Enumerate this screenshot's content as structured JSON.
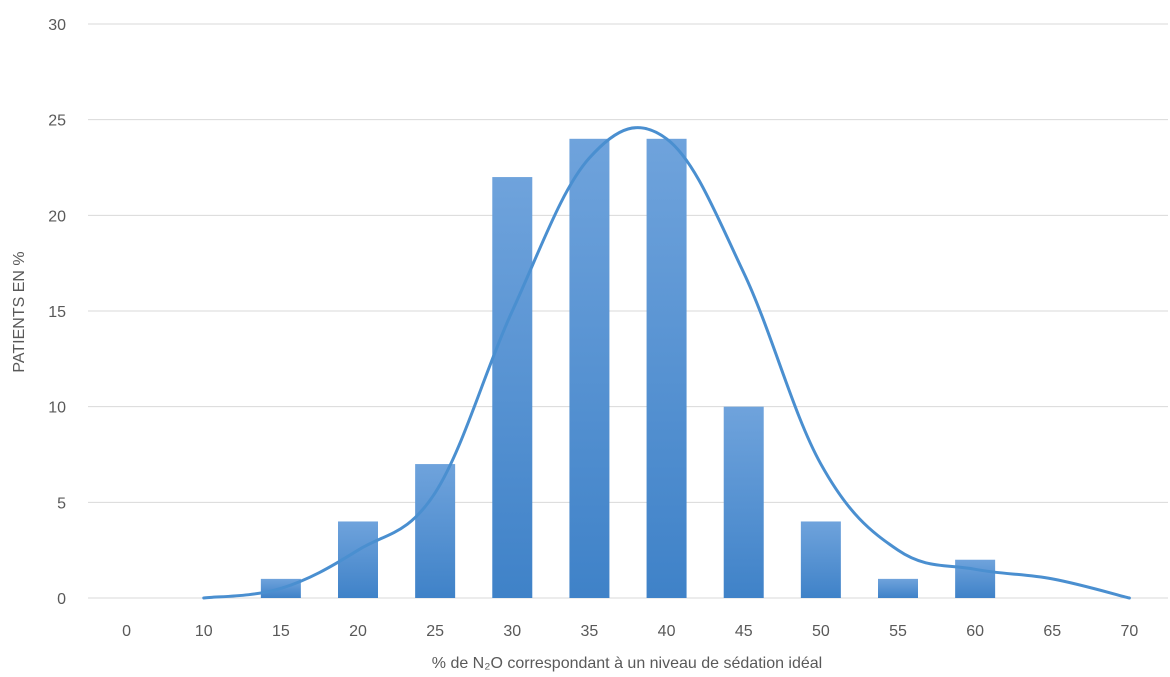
{
  "chart_data": {
    "type": "bar",
    "categories": [
      "0",
      "10",
      "15",
      "20",
      "25",
      "30",
      "35",
      "40",
      "45",
      "50",
      "55",
      "60",
      "65",
      "70"
    ],
    "series": [
      {
        "type": "bar",
        "values": [
          0,
          0,
          1,
          4,
          7,
          22,
          24,
          24,
          10,
          4,
          1,
          2,
          0,
          0
        ]
      },
      {
        "type": "line",
        "smooth": true,
        "values": [
          null,
          0,
          0.5,
          2.5,
          5.5,
          15,
          23,
          24,
          17,
          7,
          2.5,
          1.5,
          1,
          0
        ]
      }
    ],
    "ylim": [
      0,
      30
    ],
    "yticks": [
      "0",
      "5",
      "10",
      "15",
      "20",
      "25",
      "30"
    ],
    "xlabel": "% de N₂O correspondant à un niveau de sédation idéal",
    "ylabel": "PATIENTS EN %",
    "grid": true,
    "colors": {
      "bar_top": "#6fa3dc",
      "bar_bottom": "#3f82c8",
      "line": "#4a8fd0",
      "grid": "#d9d9d9",
      "text": "#595959"
    }
  }
}
